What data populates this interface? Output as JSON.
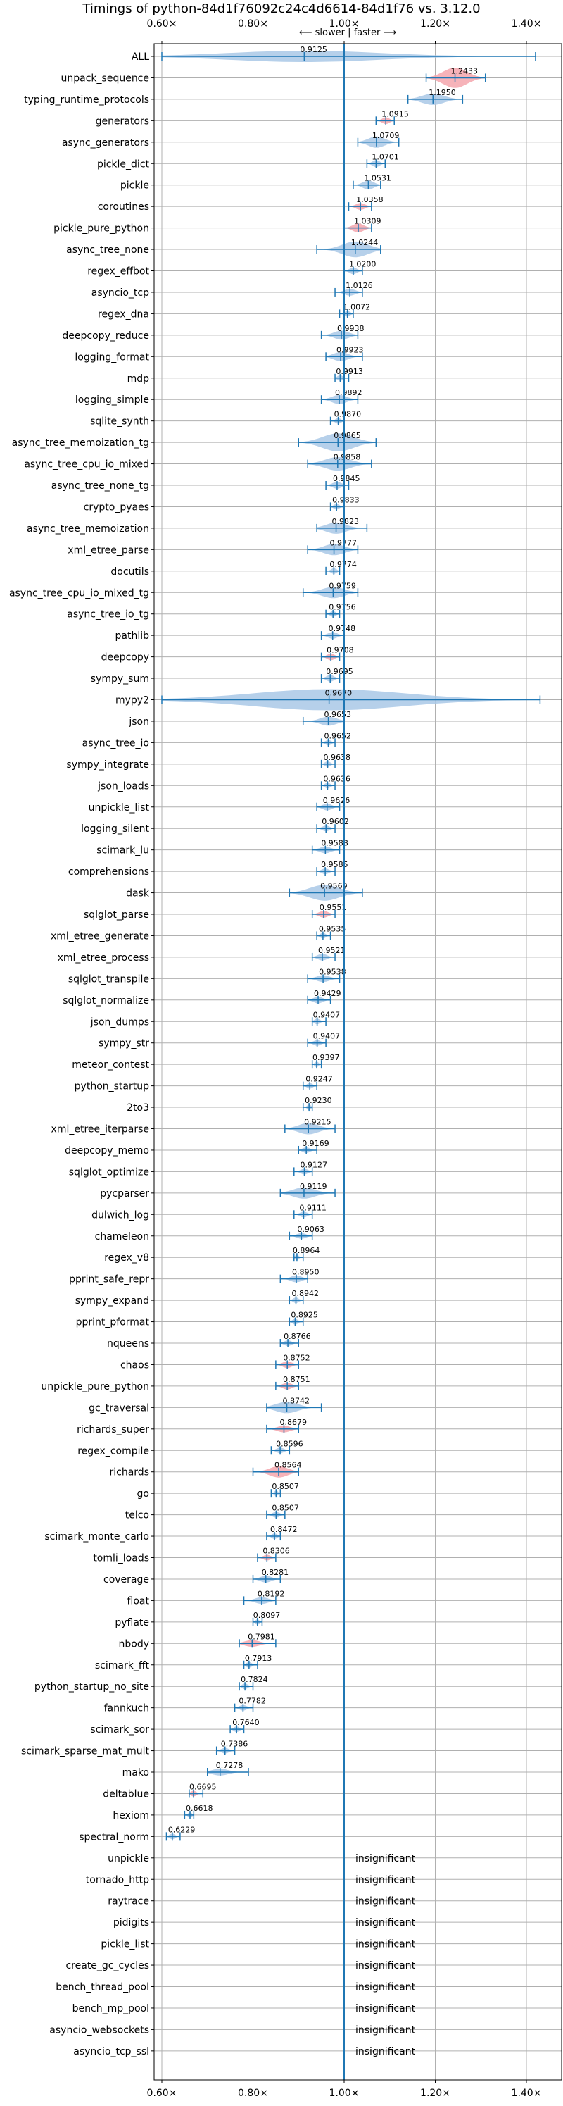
{
  "chart_data": {
    "type": "violin",
    "title": "Timings of python-84d1f76092c24c4d6614-84d1f76 vs. 3.12.0",
    "subtitle": "⟵ slower | faster ⟶",
    "xlim": [
      0.57,
      1.45
    ],
    "xticks": [
      0.6,
      0.8,
      1.0,
      1.2,
      1.4
    ],
    "xtick_labels": [
      "0.60×",
      "0.80×",
      "1.00×",
      "1.20×",
      "1.40×"
    ],
    "grid": true,
    "colors": {
      "violin": "#a9c8e6",
      "violin_highlight": "#f4a6ad",
      "line": "#1f77b4"
    },
    "benchmarks": [
      {
        "name": "ALL",
        "value": 0.9125,
        "label": "0.9125",
        "lo": 0.6,
        "hi": 1.42,
        "w": 0.05,
        "kind": "all"
      },
      {
        "name": "unpack_sequence",
        "value": 1.2433,
        "label": "1.2433",
        "lo": 1.18,
        "hi": 1.31,
        "w": 0.09,
        "kind": "red"
      },
      {
        "name": "typing_runtime_protocols",
        "value": 1.195,
        "label": "1.1950",
        "lo": 1.14,
        "hi": 1.26,
        "w": 0.05,
        "kind": "blue"
      },
      {
        "name": "generators",
        "value": 1.0915,
        "label": "1.0915",
        "lo": 1.07,
        "hi": 1.11,
        "w": 0.03,
        "kind": "red"
      },
      {
        "name": "async_generators",
        "value": 1.0709,
        "label": "1.0709",
        "lo": 1.03,
        "hi": 1.12,
        "w": 0.05,
        "kind": "blue"
      },
      {
        "name": "pickle_dict",
        "value": 1.0701,
        "label": "1.0701",
        "lo": 1.05,
        "hi": 1.09,
        "w": 0.03,
        "kind": "blue"
      },
      {
        "name": "pickle",
        "value": 1.0531,
        "label": "1.0531",
        "lo": 1.02,
        "hi": 1.08,
        "w": 0.04,
        "kind": "blue"
      },
      {
        "name": "coroutines",
        "value": 1.0358,
        "label": "1.0358",
        "lo": 1.01,
        "hi": 1.06,
        "w": 0.03,
        "kind": "red"
      },
      {
        "name": "pickle_pure_python",
        "value": 1.0309,
        "label": "1.0309",
        "lo": 1.0,
        "hi": 1.06,
        "w": 0.04,
        "kind": "red"
      },
      {
        "name": "async_tree_none",
        "value": 1.0244,
        "label": "1.0244",
        "lo": 0.94,
        "hi": 1.08,
        "w": 0.07,
        "kind": "blue"
      },
      {
        "name": "regex_effbot",
        "value": 1.02,
        "label": "1.0200",
        "lo": 1.0,
        "hi": 1.04,
        "w": 0.03,
        "kind": "blue"
      },
      {
        "name": "asyncio_tcp",
        "value": 1.0126,
        "label": "1.0126",
        "lo": 0.98,
        "hi": 1.04,
        "w": 0.03,
        "kind": "blue"
      },
      {
        "name": "regex_dna",
        "value": 1.0072,
        "label": "1.0072",
        "lo": 0.99,
        "hi": 1.02,
        "w": 0.02,
        "kind": "blue"
      },
      {
        "name": "deepcopy_reduce",
        "value": 0.9938,
        "label": "0.9938",
        "lo": 0.95,
        "hi": 1.03,
        "w": 0.04,
        "kind": "blue"
      },
      {
        "name": "logging_format",
        "value": 0.9923,
        "label": "0.9923",
        "lo": 0.96,
        "hi": 1.04,
        "w": 0.04,
        "kind": "blue"
      },
      {
        "name": "mdp",
        "value": 0.9913,
        "label": "0.9913",
        "lo": 0.98,
        "hi": 1.01,
        "w": 0.02,
        "kind": "blue"
      },
      {
        "name": "logging_simple",
        "value": 0.9892,
        "label": "0.9892",
        "lo": 0.95,
        "hi": 1.03,
        "w": 0.04,
        "kind": "blue"
      },
      {
        "name": "sqlite_synth",
        "value": 0.987,
        "label": "0.9870",
        "lo": 0.97,
        "hi": 1.0,
        "w": 0.02,
        "kind": "blue"
      },
      {
        "name": "async_tree_memoization_tg",
        "value": 0.9865,
        "label": "0.9865",
        "lo": 0.9,
        "hi": 1.07,
        "w": 0.08,
        "kind": "blue"
      },
      {
        "name": "async_tree_cpu_io_mixed",
        "value": 0.9858,
        "label": "0.9858",
        "lo": 0.92,
        "hi": 1.06,
        "w": 0.06,
        "kind": "blue"
      },
      {
        "name": "async_tree_none_tg",
        "value": 0.9845,
        "label": "0.9845",
        "lo": 0.96,
        "hi": 1.01,
        "w": 0.03,
        "kind": "blue"
      },
      {
        "name": "crypto_pyaes",
        "value": 0.9833,
        "label": "0.9833",
        "lo": 0.97,
        "hi": 1.0,
        "w": 0.02,
        "kind": "blue"
      },
      {
        "name": "async_tree_memoization",
        "value": 0.9823,
        "label": "0.9823",
        "lo": 0.94,
        "hi": 1.05,
        "w": 0.05,
        "kind": "blue"
      },
      {
        "name": "xml_etree_parse",
        "value": 0.9777,
        "label": "0.9777",
        "lo": 0.92,
        "hi": 1.03,
        "w": 0.05,
        "kind": "blue"
      },
      {
        "name": "docutils",
        "value": 0.9774,
        "label": "0.9774",
        "lo": 0.96,
        "hi": 0.99,
        "w": 0.02,
        "kind": "blue"
      },
      {
        "name": "async_tree_cpu_io_mixed_tg",
        "value": 0.9759,
        "label": "0.9759",
        "lo": 0.91,
        "hi": 1.03,
        "w": 0.05,
        "kind": "blue"
      },
      {
        "name": "async_tree_io_tg",
        "value": 0.9756,
        "label": "0.9756",
        "lo": 0.96,
        "hi": 0.99,
        "w": 0.02,
        "kind": "blue"
      },
      {
        "name": "pathlib",
        "value": 0.9748,
        "label": "0.9748",
        "lo": 0.95,
        "hi": 1.0,
        "w": 0.03,
        "kind": "blue"
      },
      {
        "name": "deepcopy",
        "value": 0.9708,
        "label": "0.9708",
        "lo": 0.95,
        "hi": 0.99,
        "w": 0.03,
        "kind": "red"
      },
      {
        "name": "sympy_sum",
        "value": 0.9695,
        "label": "0.9695",
        "lo": 0.95,
        "hi": 0.99,
        "w": 0.03,
        "kind": "blue"
      },
      {
        "name": "mypy2",
        "value": 0.967,
        "label": "0.9670",
        "lo": 0.6,
        "hi": 1.43,
        "w": 0.18,
        "kind": "blue"
      },
      {
        "name": "json",
        "value": 0.9653,
        "label": "0.9653",
        "lo": 0.91,
        "hi": 1.0,
        "w": 0.04,
        "kind": "blue"
      },
      {
        "name": "async_tree_io",
        "value": 0.9652,
        "label": "0.9652",
        "lo": 0.95,
        "hi": 0.98,
        "w": 0.02,
        "kind": "blue"
      },
      {
        "name": "sympy_integrate",
        "value": 0.9638,
        "label": "0.9638",
        "lo": 0.95,
        "hi": 0.98,
        "w": 0.02,
        "kind": "blue"
      },
      {
        "name": "json_loads",
        "value": 0.9636,
        "label": "0.9636",
        "lo": 0.95,
        "hi": 0.98,
        "w": 0.02,
        "kind": "blue"
      },
      {
        "name": "unpickle_list",
        "value": 0.9626,
        "label": "0.9626",
        "lo": 0.94,
        "hi": 0.99,
        "w": 0.03,
        "kind": "blue"
      },
      {
        "name": "logging_silent",
        "value": 0.9602,
        "label": "0.9602",
        "lo": 0.94,
        "hi": 0.98,
        "w": 0.02,
        "kind": "blue"
      },
      {
        "name": "scimark_lu",
        "value": 0.9588,
        "label": "0.9588",
        "lo": 0.93,
        "hi": 0.99,
        "w": 0.03,
        "kind": "blue"
      },
      {
        "name": "comprehensions",
        "value": 0.9585,
        "label": "0.9585",
        "lo": 0.94,
        "hi": 0.98,
        "w": 0.02,
        "kind": "blue"
      },
      {
        "name": "dask",
        "value": 0.9569,
        "label": "0.9569",
        "lo": 0.88,
        "hi": 1.04,
        "w": 0.07,
        "kind": "blue"
      },
      {
        "name": "sqlglot_parse",
        "value": 0.9551,
        "label": "0.9551",
        "lo": 0.93,
        "hi": 0.98,
        "w": 0.03,
        "kind": "red"
      },
      {
        "name": "xml_etree_generate",
        "value": 0.9535,
        "label": "0.9535",
        "lo": 0.94,
        "hi": 0.97,
        "w": 0.02,
        "kind": "blue"
      },
      {
        "name": "xml_etree_process",
        "value": 0.9521,
        "label": "0.9521",
        "lo": 0.93,
        "hi": 0.98,
        "w": 0.03,
        "kind": "blue"
      },
      {
        "name": "sqlglot_transpile",
        "value": 0.9538,
        "label": "0.9538",
        "lo": 0.92,
        "hi": 0.99,
        "w": 0.03,
        "kind": "blue"
      },
      {
        "name": "sqlglot_normalize",
        "value": 0.9429,
        "label": "0.9429",
        "lo": 0.92,
        "hi": 0.97,
        "w": 0.03,
        "kind": "blue"
      },
      {
        "name": "json_dumps",
        "value": 0.9407,
        "label": "0.9407",
        "lo": 0.93,
        "hi": 0.96,
        "w": 0.02,
        "kind": "blue"
      },
      {
        "name": "sympy_str",
        "value": 0.9407,
        "label": "0.9407",
        "lo": 0.92,
        "hi": 0.96,
        "w": 0.02,
        "kind": "blue"
      },
      {
        "name": "meteor_contest",
        "value": 0.9397,
        "label": "0.9397",
        "lo": 0.93,
        "hi": 0.95,
        "w": 0.015,
        "kind": "blue"
      },
      {
        "name": "python_startup",
        "value": 0.9247,
        "label": "0.9247",
        "lo": 0.91,
        "hi": 0.94,
        "w": 0.02,
        "kind": "blue"
      },
      {
        "name": "2to3",
        "value": 0.923,
        "label": "0.9230",
        "lo": 0.91,
        "hi": 0.93,
        "w": 0.015,
        "kind": "blue"
      },
      {
        "name": "xml_etree_iterparse",
        "value": 0.9215,
        "label": "0.9215",
        "lo": 0.87,
        "hi": 0.98,
        "w": 0.05,
        "kind": "blue"
      },
      {
        "name": "deepcopy_memo",
        "value": 0.9169,
        "label": "0.9169",
        "lo": 0.9,
        "hi": 0.94,
        "w": 0.02,
        "kind": "blue"
      },
      {
        "name": "sqlglot_optimize",
        "value": 0.9127,
        "label": "0.9127",
        "lo": 0.89,
        "hi": 0.93,
        "w": 0.02,
        "kind": "blue"
      },
      {
        "name": "pycparser",
        "value": 0.9119,
        "label": "0.9119",
        "lo": 0.86,
        "hi": 0.98,
        "w": 0.05,
        "kind": "blue"
      },
      {
        "name": "dulwich_log",
        "value": 0.9111,
        "label": "0.9111",
        "lo": 0.89,
        "hi": 0.93,
        "w": 0.02,
        "kind": "blue"
      },
      {
        "name": "chameleon",
        "value": 0.9063,
        "label": "0.9063",
        "lo": 0.88,
        "hi": 0.93,
        "w": 0.02,
        "kind": "blue"
      },
      {
        "name": "regex_v8",
        "value": 0.8964,
        "label": "0.8964",
        "lo": 0.89,
        "hi": 0.91,
        "w": 0.015,
        "kind": "blue"
      },
      {
        "name": "pprint_safe_repr",
        "value": 0.895,
        "label": "0.8950",
        "lo": 0.86,
        "hi": 0.92,
        "w": 0.03,
        "kind": "blue"
      },
      {
        "name": "sympy_expand",
        "value": 0.8942,
        "label": "0.8942",
        "lo": 0.88,
        "hi": 0.91,
        "w": 0.02,
        "kind": "blue"
      },
      {
        "name": "pprint_pformat",
        "value": 0.8925,
        "label": "0.8925",
        "lo": 0.88,
        "hi": 0.91,
        "w": 0.02,
        "kind": "blue"
      },
      {
        "name": "nqueens",
        "value": 0.8766,
        "label": "0.8766",
        "lo": 0.86,
        "hi": 0.9,
        "w": 0.02,
        "kind": "blue"
      },
      {
        "name": "chaos",
        "value": 0.8752,
        "label": "0.8752",
        "lo": 0.85,
        "hi": 0.9,
        "w": 0.03,
        "kind": "red"
      },
      {
        "name": "unpickle_pure_python",
        "value": 0.8751,
        "label": "0.8751",
        "lo": 0.85,
        "hi": 0.9,
        "w": 0.03,
        "kind": "red"
      },
      {
        "name": "gc_traversal",
        "value": 0.8742,
        "label": "0.8742",
        "lo": 0.83,
        "hi": 0.95,
        "w": 0.05,
        "kind": "blue"
      },
      {
        "name": "richards_super",
        "value": 0.8679,
        "label": "0.8679",
        "lo": 0.83,
        "hi": 0.9,
        "w": 0.03,
        "kind": "red"
      },
      {
        "name": "regex_compile",
        "value": 0.8596,
        "label": "0.8596",
        "lo": 0.84,
        "hi": 0.88,
        "w": 0.02,
        "kind": "blue"
      },
      {
        "name": "richards",
        "value": 0.8564,
        "label": "0.8564",
        "lo": 0.8,
        "hi": 0.9,
        "w": 0.05,
        "kind": "red"
      },
      {
        "name": "go",
        "value": 0.8507,
        "label": "0.8507",
        "lo": 0.84,
        "hi": 0.86,
        "w": 0.015,
        "kind": "blue"
      },
      {
        "name": "telco",
        "value": 0.8507,
        "label": "0.8507",
        "lo": 0.83,
        "hi": 0.87,
        "w": 0.02,
        "kind": "blue"
      },
      {
        "name": "scimark_monte_carlo",
        "value": 0.8472,
        "label": "0.8472",
        "lo": 0.83,
        "hi": 0.86,
        "w": 0.02,
        "kind": "blue"
      },
      {
        "name": "tomli_loads",
        "value": 0.8306,
        "label": "0.8306",
        "lo": 0.81,
        "hi": 0.85,
        "w": 0.025,
        "kind": "red"
      },
      {
        "name": "coverage",
        "value": 0.8281,
        "label": "0.8281",
        "lo": 0.8,
        "hi": 0.86,
        "w": 0.03,
        "kind": "blue"
      },
      {
        "name": "float",
        "value": 0.8192,
        "label": "0.8192",
        "lo": 0.78,
        "hi": 0.85,
        "w": 0.03,
        "kind": "blue"
      },
      {
        "name": "pyflate",
        "value": 0.8097,
        "label": "0.8097",
        "lo": 0.8,
        "hi": 0.82,
        "w": 0.015,
        "kind": "blue"
      },
      {
        "name": "nbody",
        "value": 0.7981,
        "label": "0.7981",
        "lo": 0.77,
        "hi": 0.85,
        "w": 0.03,
        "kind": "red"
      },
      {
        "name": "scimark_fft",
        "value": 0.7913,
        "label": "0.7913",
        "lo": 0.78,
        "hi": 0.81,
        "w": 0.02,
        "kind": "blue"
      },
      {
        "name": "python_startup_no_site",
        "value": 0.7824,
        "label": "0.7824",
        "lo": 0.77,
        "hi": 0.8,
        "w": 0.015,
        "kind": "blue"
      },
      {
        "name": "fannkuch",
        "value": 0.7782,
        "label": "0.7782",
        "lo": 0.76,
        "hi": 0.8,
        "w": 0.025,
        "kind": "blue"
      },
      {
        "name": "scimark_sor",
        "value": 0.764,
        "label": "0.7640",
        "lo": 0.75,
        "hi": 0.78,
        "w": 0.02,
        "kind": "blue"
      },
      {
        "name": "scimark_sparse_mat_mult",
        "value": 0.7386,
        "label": "0.7386",
        "lo": 0.72,
        "hi": 0.76,
        "w": 0.02,
        "kind": "blue"
      },
      {
        "name": "mako",
        "value": 0.7278,
        "label": "0.7278",
        "lo": 0.7,
        "hi": 0.79,
        "w": 0.03,
        "kind": "blue"
      },
      {
        "name": "deltablue",
        "value": 0.6695,
        "label": "0.6695",
        "lo": 0.66,
        "hi": 0.69,
        "w": 0.02,
        "kind": "red"
      },
      {
        "name": "hexiom",
        "value": 0.6618,
        "label": "0.6618",
        "lo": 0.65,
        "hi": 0.67,
        "w": 0.012,
        "kind": "blue"
      },
      {
        "name": "spectral_norm",
        "value": 0.6229,
        "label": "0.6229",
        "lo": 0.61,
        "hi": 0.64,
        "w": 0.02,
        "kind": "blue"
      },
      {
        "name": "unpickle",
        "value": null,
        "label": "insignificant",
        "kind": "insig"
      },
      {
        "name": "tornado_http",
        "value": null,
        "label": "insignificant",
        "kind": "insig"
      },
      {
        "name": "raytrace",
        "value": null,
        "label": "insignificant",
        "kind": "insig"
      },
      {
        "name": "pidigits",
        "value": null,
        "label": "insignificant",
        "kind": "insig"
      },
      {
        "name": "pickle_list",
        "value": null,
        "label": "insignificant",
        "kind": "insig"
      },
      {
        "name": "create_gc_cycles",
        "value": null,
        "label": "insignificant",
        "kind": "insig"
      },
      {
        "name": "bench_thread_pool",
        "value": null,
        "label": "insignificant",
        "kind": "insig"
      },
      {
        "name": "bench_mp_pool",
        "value": null,
        "label": "insignificant",
        "kind": "insig"
      },
      {
        "name": "asyncio_websockets",
        "value": null,
        "label": "insignificant",
        "kind": "insig"
      },
      {
        "name": "asyncio_tcp_ssl",
        "value": null,
        "label": "insignificant",
        "kind": "insig"
      }
    ]
  }
}
